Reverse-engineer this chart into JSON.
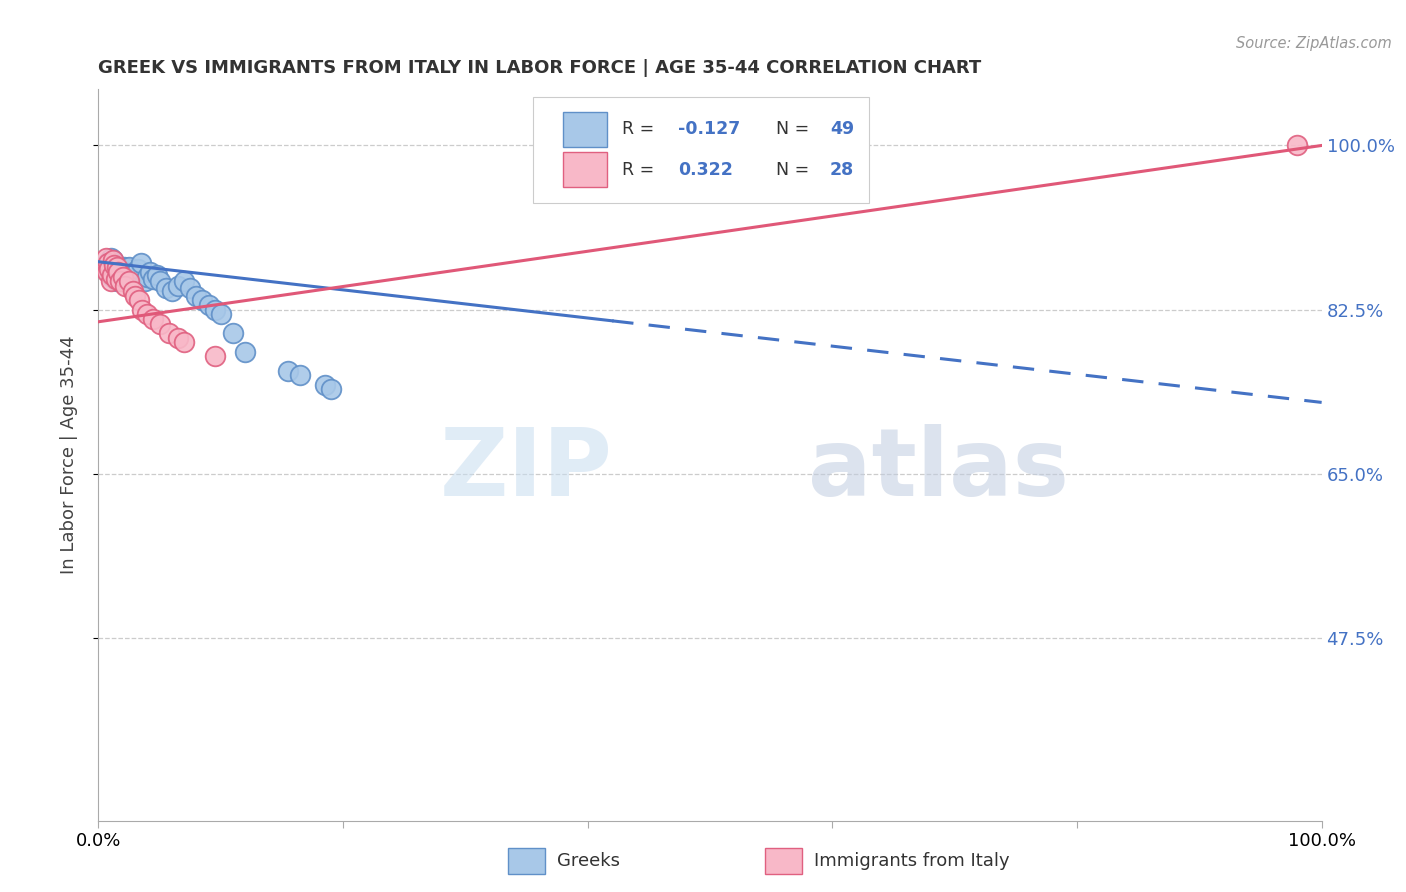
{
  "title": "GREEK VS IMMIGRANTS FROM ITALY IN LABOR FORCE | AGE 35-44 CORRELATION CHART",
  "source": "Source: ZipAtlas.com",
  "ylabel": "In Labor Force | Age 35-44",
  "xlim": [
    0.0,
    1.0
  ],
  "ylim": [
    0.28,
    1.06
  ],
  "yticks": [
    0.475,
    0.65,
    0.825,
    1.0
  ],
  "ytick_labels": [
    "47.5%",
    "65.0%",
    "82.5%",
    "100.0%"
  ],
  "xticks": [
    0.0,
    0.2,
    0.4,
    0.6,
    0.8,
    1.0
  ],
  "xtick_labels": [
    "0.0%",
    "",
    "",
    "",
    "",
    "100.0%"
  ],
  "legend_r_greek": "-0.127",
  "legend_n_greek": "49",
  "legend_r_italy": "0.322",
  "legend_n_italy": "28",
  "greek_face_color": "#a8c8e8",
  "greek_edge_color": "#6090c8",
  "italy_face_color": "#f8b8c8",
  "italy_edge_color": "#e06080",
  "greek_line_color": "#4472c4",
  "italy_line_color": "#e05878",
  "watermark_zip": "ZIP",
  "watermark_atlas": "atlas",
  "greek_points_x": [
    0.005,
    0.007,
    0.008,
    0.009,
    0.01,
    0.01,
    0.011,
    0.012,
    0.012,
    0.013,
    0.014,
    0.015,
    0.015,
    0.016,
    0.017,
    0.018,
    0.018,
    0.019,
    0.02,
    0.021,
    0.022,
    0.023,
    0.025,
    0.027,
    0.03,
    0.032,
    0.035,
    0.038,
    0.04,
    0.042,
    0.045,
    0.048,
    0.05,
    0.055,
    0.06,
    0.065,
    0.07,
    0.075,
    0.08,
    0.085,
    0.09,
    0.095,
    0.1,
    0.11,
    0.12,
    0.155,
    0.165,
    0.185,
    0.19
  ],
  "greek_points_y": [
    0.87,
    0.875,
    0.865,
    0.872,
    0.868,
    0.88,
    0.86,
    0.878,
    0.872,
    0.875,
    0.87,
    0.855,
    0.862,
    0.868,
    0.858,
    0.865,
    0.87,
    0.86,
    0.858,
    0.87,
    0.865,
    0.855,
    0.87,
    0.86,
    0.865,
    0.868,
    0.875,
    0.855,
    0.86,
    0.865,
    0.858,
    0.862,
    0.855,
    0.848,
    0.845,
    0.85,
    0.855,
    0.848,
    0.84,
    0.835,
    0.83,
    0.825,
    0.82,
    0.8,
    0.78,
    0.76,
    0.755,
    0.745,
    0.74
  ],
  "italy_points_x": [
    0.005,
    0.006,
    0.007,
    0.008,
    0.009,
    0.01,
    0.011,
    0.012,
    0.013,
    0.014,
    0.015,
    0.016,
    0.018,
    0.02,
    0.022,
    0.025,
    0.028,
    0.03,
    0.033,
    0.036,
    0.04,
    0.045,
    0.05,
    0.058,
    0.065,
    0.07,
    0.095,
    0.98
  ],
  "italy_points_y": [
    0.87,
    0.88,
    0.865,
    0.875,
    0.868,
    0.855,
    0.862,
    0.878,
    0.872,
    0.858,
    0.87,
    0.865,
    0.855,
    0.86,
    0.85,
    0.855,
    0.845,
    0.84,
    0.835,
    0.825,
    0.82,
    0.815,
    0.81,
    0.8,
    0.795,
    0.79,
    0.775,
    1.0
  ],
  "greek_line": {
    "x0": 0.0,
    "y0": 0.876,
    "x1": 1.0,
    "y1": 0.726
  },
  "greek_solid_until": 0.42,
  "italy_line": {
    "x0": 0.0,
    "y0": 0.812,
    "x1": 1.0,
    "y1": 1.0
  }
}
